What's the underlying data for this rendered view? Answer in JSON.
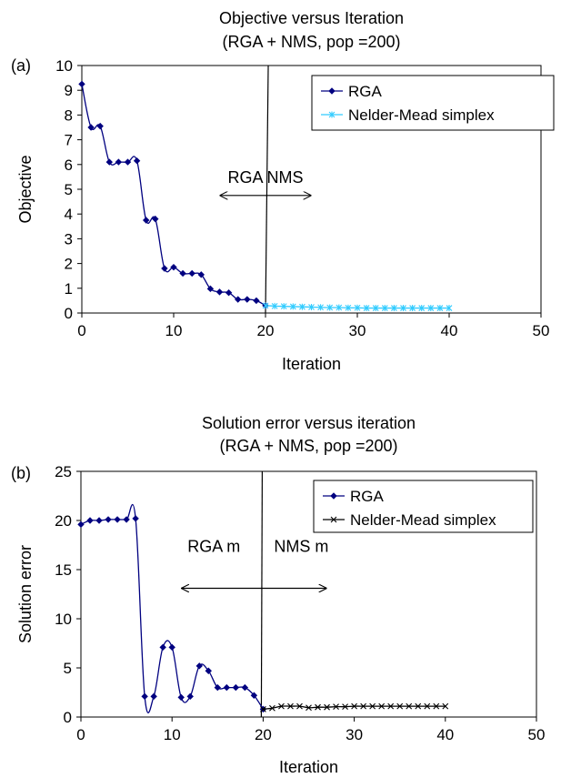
{
  "chart_data": [
    {
      "panel_label": "(a)",
      "type": "line",
      "title": "Objective versus Iteration",
      "subtitle": "(RGA + NMS, pop =200)",
      "xlabel": "Iteration",
      "ylabel": "Objective",
      "xlim": [
        0,
        50
      ],
      "ylim": [
        0,
        10
      ],
      "xticks": [
        0,
        10,
        20,
        30,
        40,
        50
      ],
      "yticks": [
        0,
        1,
        2,
        3,
        4,
        5,
        6,
        7,
        8,
        9,
        10
      ],
      "grid": false,
      "legend_position": "top-right",
      "annotation": "RGA NMS",
      "arrow_x": [
        15,
        25
      ],
      "arrow_y": 4.75,
      "divider_x": [
        20,
        20.3
      ],
      "series": [
        {
          "name": "RGA",
          "marker": "diamond",
          "color": "#000080",
          "x": [
            0,
            1,
            2,
            3,
            4,
            5,
            6,
            7,
            8,
            9,
            10,
            11,
            12,
            13,
            14,
            15,
            16,
            17,
            18,
            19,
            20
          ],
          "y": [
            9.25,
            7.5,
            7.55,
            6.1,
            6.1,
            6.1,
            6.15,
            3.75,
            3.8,
            1.8,
            1.85,
            1.6,
            1.6,
            1.55,
            0.98,
            0.85,
            0.82,
            0.55,
            0.55,
            0.5,
            0.3
          ]
        },
        {
          "name": "Nelder-Mead simplex",
          "marker": "star",
          "color": "#33CCFF",
          "x": [
            20,
            21,
            22,
            23,
            24,
            25,
            26,
            27,
            28,
            29,
            30,
            31,
            32,
            33,
            34,
            35,
            36,
            37,
            38,
            39,
            40
          ],
          "y": [
            0.3,
            0.28,
            0.27,
            0.26,
            0.25,
            0.24,
            0.23,
            0.22,
            0.22,
            0.21,
            0.21,
            0.2,
            0.2,
            0.2,
            0.2,
            0.2,
            0.2,
            0.2,
            0.2,
            0.2,
            0.2
          ]
        }
      ]
    },
    {
      "panel_label": "(b)",
      "type": "line",
      "title": "Solution error versus iteration",
      "subtitle": "(RGA + NMS, pop =200)",
      "xlabel": "Iteration",
      "ylabel": "Solution error",
      "xlim": [
        0,
        50
      ],
      "ylim": [
        0,
        25
      ],
      "xticks": [
        0,
        10,
        20,
        30,
        40,
        50
      ],
      "yticks": [
        0,
        5,
        10,
        15,
        20,
        25
      ],
      "grid": false,
      "legend_position": "top-right",
      "annotation_left": "RGA m",
      "annotation_right": "NMS m",
      "arrow_x": [
        11,
        27
      ],
      "arrow_y": 13.1,
      "divider_x": [
        19.8,
        19.9
      ],
      "series": [
        {
          "name": "RGA",
          "marker": "diamond",
          "color": "#000080",
          "x": [
            0,
            1,
            2,
            3,
            4,
            5,
            6,
            7,
            8,
            9,
            10,
            11,
            12,
            13,
            14,
            15,
            16,
            17,
            18,
            19,
            20
          ],
          "y": [
            19.6,
            20,
            20,
            20.1,
            20.1,
            20.1,
            20.2,
            2.1,
            2.1,
            7.1,
            7.1,
            2.0,
            2.1,
            5.2,
            4.7,
            3.0,
            3.0,
            3.0,
            3.0,
            2.2,
            0.8
          ]
        },
        {
          "name": "Nelder-Mead simplex",
          "marker": "x",
          "color": "#000000",
          "x": [
            20,
            21,
            22,
            23,
            24,
            25,
            26,
            27,
            28,
            29,
            30,
            31,
            32,
            33,
            34,
            35,
            36,
            37,
            38,
            39,
            40
          ],
          "y": [
            0.8,
            0.9,
            1.1,
            1.1,
            1.1,
            0.95,
            1.0,
            1.0,
            1.05,
            1.05,
            1.1,
            1.1,
            1.1,
            1.1,
            1.1,
            1.1,
            1.1,
            1.1,
            1.1,
            1.1,
            1.1
          ]
        }
      ]
    }
  ]
}
